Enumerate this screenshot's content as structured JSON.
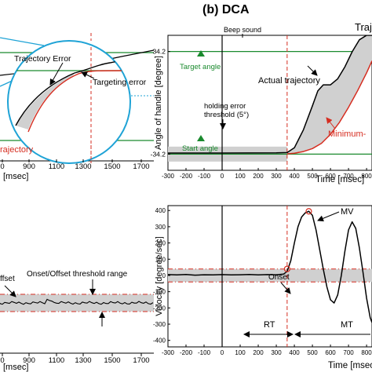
{
  "panel_title": "(b) DCA",
  "colors": {
    "black": "#000000",
    "red": "#d62d20",
    "green": "#1a8a2e",
    "cyan": "#1fa3d6",
    "gray": "#d0d0d0",
    "dred": "#d62d20"
  },
  "chart_data": [
    {
      "type": "line",
      "panel": "top-left (partial)",
      "xlabel": "[msec]",
      "xticks": [
        "0",
        "900",
        "1100",
        "1300",
        "1500",
        "1700"
      ],
      "annotations": [
        "Trajectory Error",
        "Targeting error",
        "rajectory"
      ],
      "series": [
        {
          "name": "actual",
          "color": "#000000",
          "points": [
            [
              730,
              "low"
            ],
            [
              900,
              "rising"
            ],
            [
              1330,
              "target"
            ],
            [
              1700,
              "target"
            ]
          ]
        },
        {
          "name": "minimum-jerk",
          "color": "#d62d20"
        }
      ]
    },
    {
      "type": "line",
      "panel": "top-right",
      "xlabel": "Time [msec]",
      "ylabel": "Angle of handle [degree]",
      "xticks": [
        -300,
        -200,
        -100,
        0,
        100,
        200,
        300,
        400,
        500,
        600,
        700,
        800
      ],
      "xlim": [
        -300,
        830
      ],
      "yticks": [
        "34.2",
        "-34.2"
      ],
      "ylim": [
        -45,
        45
      ],
      "hlines": [
        {
          "y": 34.2,
          "color": "green"
        },
        {
          "y": -34.2,
          "color": "green"
        }
      ],
      "vlines": [
        {
          "x": 0,
          "style": "solid",
          "label": "Beep sound"
        },
        {
          "x": 360,
          "style": "dashed",
          "color": "red"
        }
      ],
      "annotations": [
        "Target angle",
        "Start angle",
        "holding error",
        "threshold (5°)",
        "Actual trajectory",
        "Minimum-",
        "Traj"
      ],
      "series": [
        {
          "name": "Actual trajectory",
          "color": "#000000",
          "x": [
            -300,
            0,
            300,
            360,
            400,
            450,
            500,
            530,
            560,
            600,
            640,
            680,
            720,
            760,
            800,
            830
          ],
          "y": [
            -33.5,
            -33.5,
            -33.4,
            -33.2,
            -30,
            -18,
            -2,
            8,
            12,
            12,
            16,
            24,
            34,
            42,
            45,
            45
          ]
        },
        {
          "name": "Minimum-jerk",
          "color": "#d62d20",
          "x": [
            360,
            400,
            450,
            500,
            550,
            600,
            650,
            700,
            750,
            800,
            830
          ],
          "y": [
            -34,
            -33.6,
            -32.5,
            -30.5,
            -27,
            -21,
            -13,
            -3,
            8,
            20,
            28
          ]
        }
      ]
    },
    {
      "type": "line",
      "panel": "bottom-left (partial)",
      "xlabel": "[msec]",
      "xticks": [
        "0",
        "900",
        "1100",
        "1300",
        "1500",
        "1700"
      ],
      "annotations": [
        "ffset",
        "Onset/Offset threshold range"
      ]
    },
    {
      "type": "line",
      "panel": "bottom-right",
      "xlabel": "Time [msec]",
      "ylabel": "Velocity [degree/sec]",
      "xticks": [
        -300,
        -200,
        -100,
        0,
        100,
        200,
        300,
        400,
        500,
        600,
        700,
        800
      ],
      "xlim": [
        -300,
        830
      ],
      "yticks": [
        -400,
        -300,
        -200,
        -100,
        0,
        100,
        200,
        300,
        400
      ],
      "ylim": [
        -440,
        430
      ],
      "threshold": [
        -40,
        40
      ],
      "vlines": [
        {
          "x": 0,
          "style": "solid"
        },
        {
          "x": 360,
          "style": "dashed",
          "color": "red"
        }
      ],
      "annotations": [
        "MV",
        "Onset",
        "RT",
        "MT"
      ],
      "series": [
        {
          "name": "velocity",
          "color": "#000000",
          "x": [
            -300,
            -250,
            -200,
            -150,
            -100,
            -50,
            0,
            50,
            100,
            150,
            200,
            250,
            300,
            340,
            360,
            380,
            400,
            420,
            440,
            460,
            480,
            500,
            520,
            540,
            560,
            580,
            600,
            620,
            640,
            660,
            680,
            700,
            720,
            740,
            760,
            780,
            800,
            820,
            830
          ],
          "y": [
            5,
            3,
            6,
            2,
            4,
            3,
            5,
            3,
            4,
            6,
            3,
            5,
            4,
            8,
            25,
            90,
            200,
            300,
            360,
            385,
            395,
            370,
            280,
            160,
            40,
            -70,
            -150,
            -170,
            -120,
            0,
            150,
            280,
            330,
            290,
            170,
            20,
            -140,
            -260,
            -290
          ]
        }
      ]
    }
  ]
}
